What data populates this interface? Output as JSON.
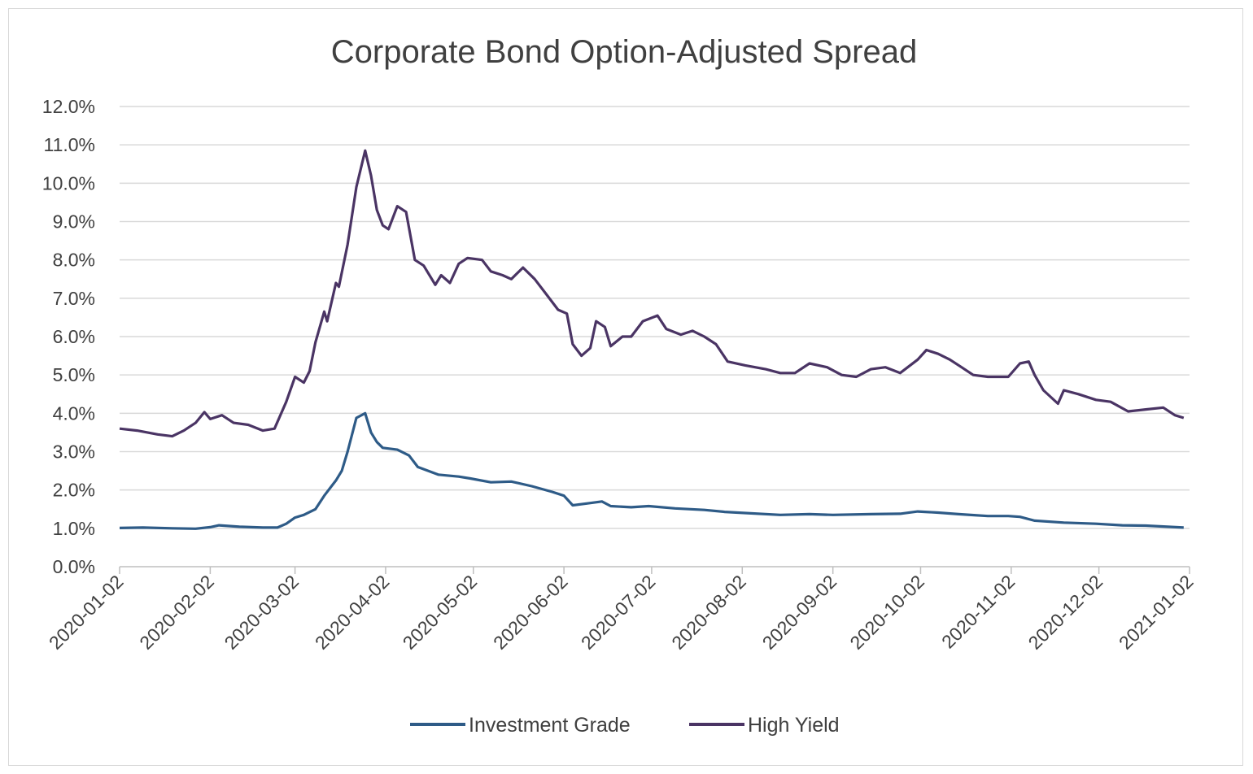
{
  "chart_data": {
    "type": "line",
    "title": "Corporate Bond Option-Adjusted Spread",
    "xlabel": "",
    "ylabel": "",
    "y_ticks": [
      "0.0%",
      "1.0%",
      "2.0%",
      "3.0%",
      "4.0%",
      "5.0%",
      "6.0%",
      "7.0%",
      "8.0%",
      "9.0%",
      "10.0%",
      "11.0%",
      "12.0%"
    ],
    "ylim": [
      0,
      12
    ],
    "x_ticks": [
      "2020-01-02",
      "2020-02-02",
      "2020-03-02",
      "2020-04-02",
      "2020-05-02",
      "2020-06-02",
      "2020-07-02",
      "2020-08-02",
      "2020-09-02",
      "2020-10-02",
      "2020-11-02",
      "2020-12-02",
      "2021-01-02"
    ],
    "xlim": [
      "2020-01-02",
      "2021-01-02"
    ],
    "grid": "horizontal",
    "legend_position": "bottom",
    "series": [
      {
        "name": "Investment Grade",
        "color": "#2e5b87",
        "points": [
          [
            "2020-01-02",
            1.01
          ],
          [
            "2020-01-10",
            1.02
          ],
          [
            "2020-01-20",
            1.0
          ],
          [
            "2020-01-28",
            0.99
          ],
          [
            "2020-02-02",
            1.03
          ],
          [
            "2020-02-05",
            1.08
          ],
          [
            "2020-02-12",
            1.04
          ],
          [
            "2020-02-20",
            1.02
          ],
          [
            "2020-02-25",
            1.02
          ],
          [
            "2020-02-28",
            1.12
          ],
          [
            "2020-03-02",
            1.28
          ],
          [
            "2020-03-05",
            1.35
          ],
          [
            "2020-03-09",
            1.5
          ],
          [
            "2020-03-12",
            1.85
          ],
          [
            "2020-03-16",
            2.25
          ],
          [
            "2020-03-18",
            2.5
          ],
          [
            "2020-03-20",
            3.0
          ],
          [
            "2020-03-23",
            3.88
          ],
          [
            "2020-03-26",
            4.0
          ],
          [
            "2020-03-28",
            3.5
          ],
          [
            "2020-03-30",
            3.25
          ],
          [
            "2020-04-01",
            3.1
          ],
          [
            "2020-04-06",
            3.05
          ],
          [
            "2020-04-10",
            2.9
          ],
          [
            "2020-04-13",
            2.6
          ],
          [
            "2020-04-20",
            2.4
          ],
          [
            "2020-04-27",
            2.35
          ],
          [
            "2020-05-01",
            2.3
          ],
          [
            "2020-05-08",
            2.2
          ],
          [
            "2020-05-15",
            2.22
          ],
          [
            "2020-05-22",
            2.1
          ],
          [
            "2020-05-29",
            1.95
          ],
          [
            "2020-06-02",
            1.85
          ],
          [
            "2020-06-05",
            1.6
          ],
          [
            "2020-06-10",
            1.65
          ],
          [
            "2020-06-15",
            1.7
          ],
          [
            "2020-06-18",
            1.58
          ],
          [
            "2020-06-25",
            1.55
          ],
          [
            "2020-07-01",
            1.58
          ],
          [
            "2020-07-10",
            1.52
          ],
          [
            "2020-07-20",
            1.48
          ],
          [
            "2020-07-27",
            1.43
          ],
          [
            "2020-08-03",
            1.4
          ],
          [
            "2020-08-15",
            1.35
          ],
          [
            "2020-08-25",
            1.37
          ],
          [
            "2020-09-02",
            1.35
          ],
          [
            "2020-09-15",
            1.37
          ],
          [
            "2020-09-25",
            1.38
          ],
          [
            "2020-10-01",
            1.44
          ],
          [
            "2020-10-08",
            1.41
          ],
          [
            "2020-10-15",
            1.37
          ],
          [
            "2020-10-25",
            1.32
          ],
          [
            "2020-11-01",
            1.32
          ],
          [
            "2020-11-05",
            1.3
          ],
          [
            "2020-11-10",
            1.2
          ],
          [
            "2020-11-20",
            1.15
          ],
          [
            "2020-12-01",
            1.12
          ],
          [
            "2020-12-10",
            1.08
          ],
          [
            "2020-12-18",
            1.07
          ],
          [
            "2020-12-31",
            1.02
          ]
        ]
      },
      {
        "name": "High Yield",
        "color": "#4a3464",
        "points": [
          [
            "2020-01-02",
            3.6
          ],
          [
            "2020-01-08",
            3.55
          ],
          [
            "2020-01-15",
            3.45
          ],
          [
            "2020-01-20",
            3.4
          ],
          [
            "2020-01-24",
            3.55
          ],
          [
            "2020-01-28",
            3.75
          ],
          [
            "2020-01-31",
            4.03
          ],
          [
            "2020-02-02",
            3.85
          ],
          [
            "2020-02-06",
            3.95
          ],
          [
            "2020-02-10",
            3.75
          ],
          [
            "2020-02-15",
            3.7
          ],
          [
            "2020-02-20",
            3.55
          ],
          [
            "2020-02-24",
            3.6
          ],
          [
            "2020-02-28",
            4.3
          ],
          [
            "2020-03-02",
            4.95
          ],
          [
            "2020-03-05",
            4.8
          ],
          [
            "2020-03-07",
            5.1
          ],
          [
            "2020-03-09",
            5.85
          ],
          [
            "2020-03-12",
            6.65
          ],
          [
            "2020-03-13",
            6.4
          ],
          [
            "2020-03-16",
            7.4
          ],
          [
            "2020-03-17",
            7.3
          ],
          [
            "2020-03-20",
            8.4
          ],
          [
            "2020-03-23",
            9.9
          ],
          [
            "2020-03-26",
            10.85
          ],
          [
            "2020-03-28",
            10.2
          ],
          [
            "2020-03-30",
            9.3
          ],
          [
            "2020-04-01",
            8.9
          ],
          [
            "2020-04-03",
            8.8
          ],
          [
            "2020-04-06",
            9.4
          ],
          [
            "2020-04-09",
            9.25
          ],
          [
            "2020-04-12",
            8.0
          ],
          [
            "2020-04-15",
            7.85
          ],
          [
            "2020-04-19",
            7.35
          ],
          [
            "2020-04-21",
            7.6
          ],
          [
            "2020-04-24",
            7.4
          ],
          [
            "2020-04-27",
            7.9
          ],
          [
            "2020-04-30",
            8.05
          ],
          [
            "2020-05-05",
            8.0
          ],
          [
            "2020-05-08",
            7.7
          ],
          [
            "2020-05-12",
            7.6
          ],
          [
            "2020-05-15",
            7.5
          ],
          [
            "2020-05-19",
            7.8
          ],
          [
            "2020-05-23",
            7.5
          ],
          [
            "2020-05-27",
            7.1
          ],
          [
            "2020-05-31",
            6.7
          ],
          [
            "2020-06-03",
            6.6
          ],
          [
            "2020-06-05",
            5.8
          ],
          [
            "2020-06-08",
            5.5
          ],
          [
            "2020-06-11",
            5.7
          ],
          [
            "2020-06-13",
            6.4
          ],
          [
            "2020-06-16",
            6.25
          ],
          [
            "2020-06-18",
            5.75
          ],
          [
            "2020-06-22",
            6.0
          ],
          [
            "2020-06-25",
            6.0
          ],
          [
            "2020-06-29",
            6.4
          ],
          [
            "2020-07-04",
            6.55
          ],
          [
            "2020-07-07",
            6.2
          ],
          [
            "2020-07-12",
            6.05
          ],
          [
            "2020-07-16",
            6.15
          ],
          [
            "2020-07-20",
            6.0
          ],
          [
            "2020-07-24",
            5.8
          ],
          [
            "2020-07-28",
            5.35
          ],
          [
            "2020-08-03",
            5.25
          ],
          [
            "2020-08-10",
            5.15
          ],
          [
            "2020-08-15",
            5.05
          ],
          [
            "2020-08-20",
            5.05
          ],
          [
            "2020-08-25",
            5.3
          ],
          [
            "2020-08-31",
            5.2
          ],
          [
            "2020-09-05",
            5.0
          ],
          [
            "2020-09-10",
            4.95
          ],
          [
            "2020-09-15",
            5.15
          ],
          [
            "2020-09-20",
            5.2
          ],
          [
            "2020-09-25",
            5.05
          ],
          [
            "2020-10-01",
            5.4
          ],
          [
            "2020-10-04",
            5.65
          ],
          [
            "2020-10-08",
            5.55
          ],
          [
            "2020-10-12",
            5.4
          ],
          [
            "2020-10-16",
            5.2
          ],
          [
            "2020-10-20",
            5.0
          ],
          [
            "2020-10-25",
            4.95
          ],
          [
            "2020-11-01",
            4.95
          ],
          [
            "2020-11-05",
            5.3
          ],
          [
            "2020-11-08",
            5.35
          ],
          [
            "2020-11-10",
            5.0
          ],
          [
            "2020-11-13",
            4.6
          ],
          [
            "2020-11-18",
            4.25
          ],
          [
            "2020-11-20",
            4.6
          ],
          [
            "2020-11-25",
            4.5
          ],
          [
            "2020-12-01",
            4.35
          ],
          [
            "2020-12-06",
            4.3
          ],
          [
            "2020-12-12",
            4.05
          ],
          [
            "2020-12-18",
            4.1
          ],
          [
            "2020-12-24",
            4.15
          ],
          [
            "2020-12-28",
            3.95
          ],
          [
            "2020-12-31",
            3.88
          ]
        ]
      }
    ]
  }
}
